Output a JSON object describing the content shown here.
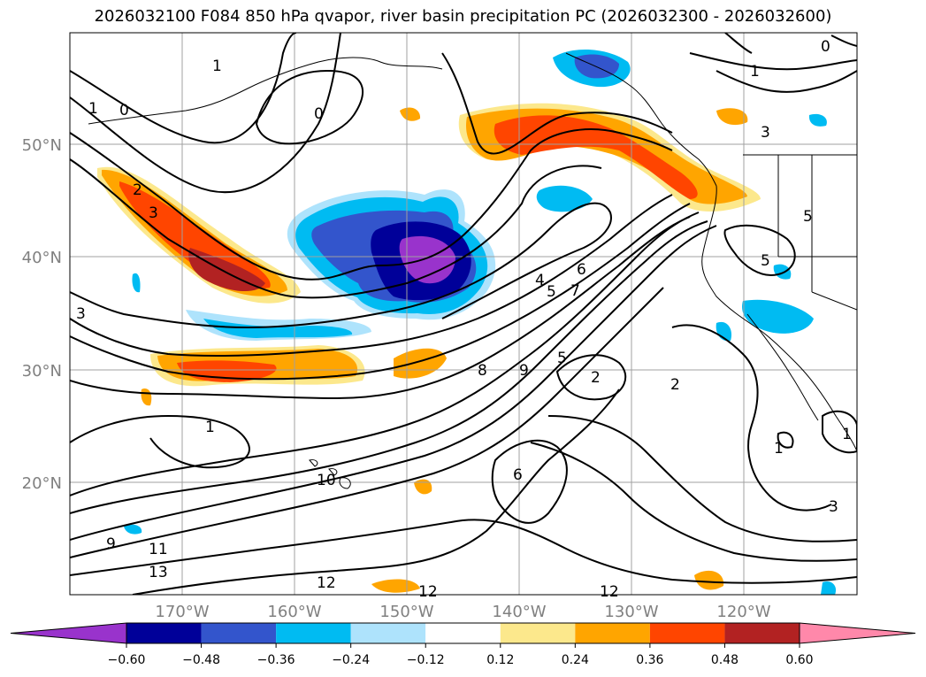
{
  "title": "2026032100 F084 850 hPa qvapor, river basin precipitation PC (2026032300 - 2026032600)",
  "map": {
    "lat_ticks": [
      "50°N",
      "40°N",
      "30°N",
      "20°N"
    ],
    "lon_ticks": [
      "170°W",
      "160°W",
      "150°W",
      "140°W",
      "130°W",
      "120°W"
    ],
    "contour_labels": [
      "0",
      "1",
      "1",
      "0",
      "0",
      "1",
      "2",
      "3",
      "3",
      "3",
      "5",
      "5",
      "4",
      "5",
      "6",
      "7",
      "8",
      "9",
      "5",
      "2",
      "2",
      "1",
      "1",
      "10",
      "9",
      "11",
      "13",
      "12",
      "12",
      "12",
      "6",
      "3",
      "1"
    ]
  },
  "colorbar": {
    "colors": [
      "#9933cc",
      "#000099",
      "#3355cc",
      "#00bbf2",
      "#aee3fc",
      "#ffffff",
      "#fce88c",
      "#ffa500",
      "#ff4500",
      "#b22222",
      "#ff88aa"
    ],
    "tick_labels": [
      "−0.60",
      "−0.48",
      "−0.36",
      "−0.24",
      "−0.12",
      "0.12",
      "0.24",
      "0.36",
      "0.48",
      "0.60"
    ]
  }
}
